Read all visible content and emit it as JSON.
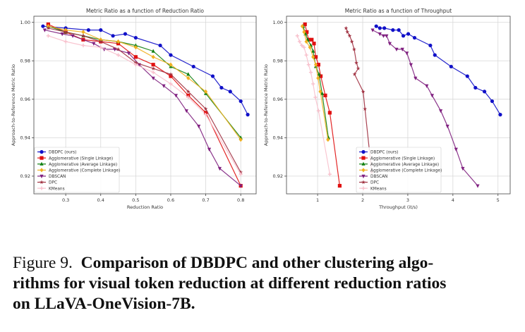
{
  "series_style": [
    {
      "name": "DBDPC (ours)",
      "color": "#1010c8",
      "marker": "circle"
    },
    {
      "name": "Agglomerative (Single Linkage)",
      "color": "#e01010",
      "marker": "square"
    },
    {
      "name": "Agglomerative (Average Linkage)",
      "color": "#108010",
      "marker": "triangle-up"
    },
    {
      "name": "Agglomerative (Complete Linkage)",
      "color": "#f0b020",
      "marker": "diamond"
    },
    {
      "name": "DBSCAN",
      "color": "#802080",
      "marker": "triangle-down"
    },
    {
      "name": "DPC",
      "color": "#a03040",
      "marker": "star"
    },
    {
      "name": "KMeans",
      "color": "#f8c0cc",
      "marker": "plus"
    }
  ],
  "chart_data": [
    {
      "type": "line",
      "title": "Metric Ratio as a function of Reduction Ratio",
      "xlabel": "Reduction Ratio",
      "ylabel": "Approach-to-Reference Metric Ratio",
      "xlim": [
        0.209,
        0.844
      ],
      "ylim": [
        0.9108,
        1.0032
      ],
      "xticks": [
        0.3,
        0.4,
        0.5,
        0.6,
        0.7,
        0.8
      ],
      "xtick_labels": [
        "0.3",
        "0.4",
        "0.5",
        "0.6",
        "0.7",
        "0.8"
      ],
      "yticks": [
        0.92,
        0.94,
        0.96,
        0.98,
        1.0
      ],
      "ytick_labels": [
        "0.92",
        "0.94",
        "0.96",
        "0.98",
        "1.00"
      ],
      "grid": true,
      "legend": "bottom-left",
      "series": [
        {
          "name": "DBDPC (ours)",
          "x": [
            0.235,
            0.3,
            0.365,
            0.4,
            0.435,
            0.47,
            0.5,
            0.57,
            0.6,
            0.665,
            0.72,
            0.745,
            0.77,
            0.8,
            0.82
          ],
          "y": [
            0.998,
            0.997,
            0.996,
            0.996,
            0.993,
            0.994,
            0.992,
            0.988,
            0.983,
            0.977,
            0.972,
            0.966,
            0.964,
            0.959,
            0.952
          ]
        },
        {
          "name": "Agglomerative (Single Linkage)",
          "x": [
            0.25,
            0.3,
            0.35,
            0.4,
            0.45,
            0.5,
            0.55,
            0.6,
            0.65,
            0.7,
            0.8
          ],
          "y": [
            0.999,
            0.995,
            0.991,
            0.99,
            0.989,
            0.982,
            0.978,
            0.972,
            0.962,
            0.953,
            0.915
          ]
        },
        {
          "name": "Agglomerative (Average Linkage)",
          "x": [
            0.25,
            0.3,
            0.35,
            0.4,
            0.45,
            0.5,
            0.55,
            0.6,
            0.65,
            0.7,
            0.8
          ],
          "y": [
            0.998,
            0.995,
            0.993,
            0.991,
            0.99,
            0.988,
            0.985,
            0.977,
            0.973,
            0.963,
            0.94
          ]
        },
        {
          "name": "Agglomerative (Complete Linkage)",
          "x": [
            0.25,
            0.3,
            0.35,
            0.4,
            0.45,
            0.5,
            0.55,
            0.6,
            0.65,
            0.7,
            0.8
          ],
          "y": [
            0.998,
            0.996,
            0.995,
            0.991,
            0.99,
            0.987,
            0.982,
            0.978,
            0.971,
            0.964,
            0.939
          ]
        },
        {
          "name": "DBSCAN",
          "x": [
            0.24,
            0.29,
            0.32,
            0.38,
            0.41,
            0.44,
            0.48,
            0.51,
            0.55,
            0.58,
            0.615,
            0.645,
            0.68,
            0.71,
            0.74,
            0.8
          ],
          "y": [
            0.996,
            0.994,
            0.993,
            0.989,
            0.986,
            0.986,
            0.984,
            0.978,
            0.971,
            0.967,
            0.962,
            0.954,
            0.946,
            0.934,
            0.924,
            0.915
          ]
        },
        {
          "name": "DPC",
          "x": [
            0.25,
            0.3,
            0.35,
            0.4,
            0.45,
            0.5,
            0.55,
            0.6,
            0.65,
            0.7,
            0.8
          ],
          "y": [
            0.997,
            0.995,
            0.993,
            0.99,
            0.986,
            0.979,
            0.976,
            0.973,
            0.964,
            0.955,
            0.922
          ]
        },
        {
          "name": "KMeans",
          "x": [
            0.25,
            0.3,
            0.35,
            0.4,
            0.45,
            0.5,
            0.55,
            0.6,
            0.65,
            0.7,
            0.8
          ],
          "y": [
            0.993,
            0.99,
            0.988,
            0.987,
            0.983,
            0.978,
            0.974,
            0.968,
            0.961,
            0.952,
            0.921
          ]
        }
      ]
    },
    {
      "type": "line",
      "title": "Metric Ratio as a function of Throughput",
      "xlabel": "Throughput (it/s)",
      "ylabel": "Approach-to-Reference Metric Ratio",
      "xlim": [
        0.31,
        5.27
      ],
      "ylim": [
        0.9108,
        1.0032
      ],
      "xticks": [
        1,
        2,
        3,
        4,
        5
      ],
      "xtick_labels": [
        "1",
        "2",
        "3",
        "4",
        "5"
      ],
      "yticks": [
        0.92,
        0.94,
        0.96,
        0.98,
        1.0
      ],
      "ytick_labels": [
        "0.92",
        "0.94",
        "0.96",
        "0.98",
        "1.00"
      ],
      "grid": true,
      "legend": "bottom-center",
      "series": [
        {
          "name": "DBDPC (ours)",
          "x": [
            2.3,
            2.38,
            2.48,
            2.67,
            2.8,
            2.9,
            3.01,
            3.15,
            3.5,
            3.6,
            3.96,
            4.32,
            4.5,
            4.7,
            4.87,
            5.05
          ],
          "y": [
            0.998,
            0.997,
            0.997,
            0.996,
            0.996,
            0.993,
            0.994,
            0.992,
            0.988,
            0.983,
            0.977,
            0.972,
            0.966,
            0.964,
            0.959,
            0.952
          ]
        },
        {
          "name": "Agglomerative (Single Linkage)",
          "x": [
            0.72,
            0.76,
            0.8,
            0.87,
            0.92,
            0.96,
            1.02,
            1.07,
            1.17,
            1.27,
            1.49
          ],
          "y": [
            0.999,
            0.995,
            0.991,
            0.991,
            0.989,
            0.982,
            0.978,
            0.972,
            0.962,
            0.953,
            0.915
          ]
        },
        {
          "name": "Agglomerative (Average Linkage)",
          "x": [
            0.68,
            0.73,
            0.78,
            0.85,
            0.9,
            0.96,
            1.03,
            1.1,
            1.24
          ],
          "y": [
            0.998,
            0.994,
            0.991,
            0.988,
            0.985,
            0.977,
            0.973,
            0.963,
            0.94
          ]
        },
        {
          "name": "Agglomerative (Complete Linkage)",
          "x": [
            0.66,
            0.7,
            0.75,
            0.83,
            0.9,
            0.96,
            1.01,
            1.06,
            1.23
          ],
          "y": [
            0.998,
            0.995,
            0.99,
            0.987,
            0.982,
            0.978,
            0.971,
            0.964,
            0.939
          ]
        },
        {
          "name": "DBSCAN",
          "x": [
            2.22,
            2.38,
            2.46,
            2.53,
            2.6,
            2.75,
            2.88,
            2.98,
            3.07,
            3.17,
            3.42,
            3.54,
            3.73,
            3.88,
            4.07,
            4.22,
            4.55
          ],
          "y": [
            0.996,
            0.994,
            0.993,
            0.993,
            0.989,
            0.986,
            0.986,
            0.984,
            0.978,
            0.971,
            0.967,
            0.962,
            0.954,
            0.946,
            0.934,
            0.924,
            0.915
          ]
        },
        {
          "name": "DPC",
          "x": [
            1.63,
            1.66,
            1.71,
            1.76,
            1.81,
            1.86,
            1.9,
            1.82,
            2.01,
            2.05,
            2.2
          ],
          "y": [
            0.997,
            0.995,
            0.993,
            0.99,
            0.986,
            0.979,
            0.976,
            0.973,
            0.964,
            0.955,
            0.922
          ]
        },
        {
          "name": "KMeans",
          "x": [
            0.55,
            0.6,
            0.65,
            0.7,
            0.75,
            0.8,
            0.85,
            0.9,
            0.95,
            1.02,
            1.27
          ],
          "y": [
            0.993,
            0.99,
            0.988,
            0.987,
            0.983,
            0.978,
            0.974,
            0.968,
            0.961,
            0.954,
            0.921
          ]
        }
      ]
    }
  ],
  "caption": {
    "label": "Figure 9.",
    "line1": "Comparison of DBDPC and other clustering algo-",
    "line2": "rithms for visual token reduction at different reduction ratios",
    "line3": "on LLaVA-OneVision-7B."
  }
}
